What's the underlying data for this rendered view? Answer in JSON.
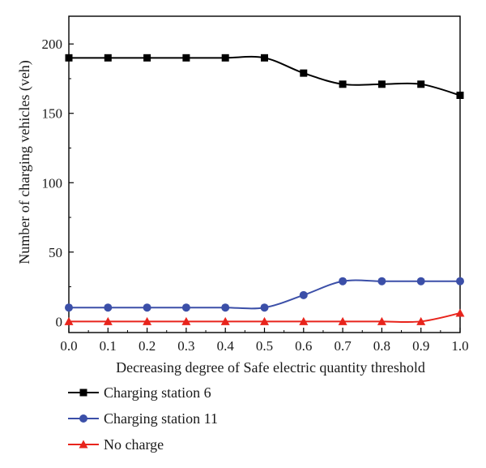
{
  "chart_data": {
    "type": "line",
    "xlabel": "Decreasing degree of Safe electric quantity threshold",
    "ylabel": "Number of charging vehicles (veh)",
    "xlim": [
      0.0,
      1.0
    ],
    "ylim": [
      -8,
      220
    ],
    "x_ticks": [
      "0.0",
      "0.1",
      "0.2",
      "0.3",
      "0.4",
      "0.5",
      "0.6",
      "0.7",
      "0.8",
      "0.9",
      "1.0"
    ],
    "y_ticks": [
      "0",
      "50",
      "100",
      "150",
      "200"
    ],
    "x": [
      0.0,
      0.1,
      0.2,
      0.3,
      0.4,
      0.5,
      0.6,
      0.7,
      0.8,
      0.9,
      1.0
    ],
    "series": [
      {
        "name": "Charging station 6",
        "color": "#000000",
        "marker": "square",
        "values": [
          190,
          190,
          190,
          190,
          190,
          190,
          179,
          171,
          171,
          171,
          163
        ]
      },
      {
        "name": "Charging station 11",
        "color": "#3b4fa8",
        "marker": "circle",
        "values": [
          10,
          10,
          10,
          10,
          10,
          10,
          19,
          29,
          29,
          29,
          29
        ]
      },
      {
        "name": "No charge",
        "color": "#e8241c",
        "marker": "triangle",
        "values": [
          0,
          0,
          0,
          0,
          0,
          0,
          0,
          0,
          0,
          0,
          6
        ]
      }
    ],
    "legend_position": "bottom-left",
    "grid": false
  }
}
